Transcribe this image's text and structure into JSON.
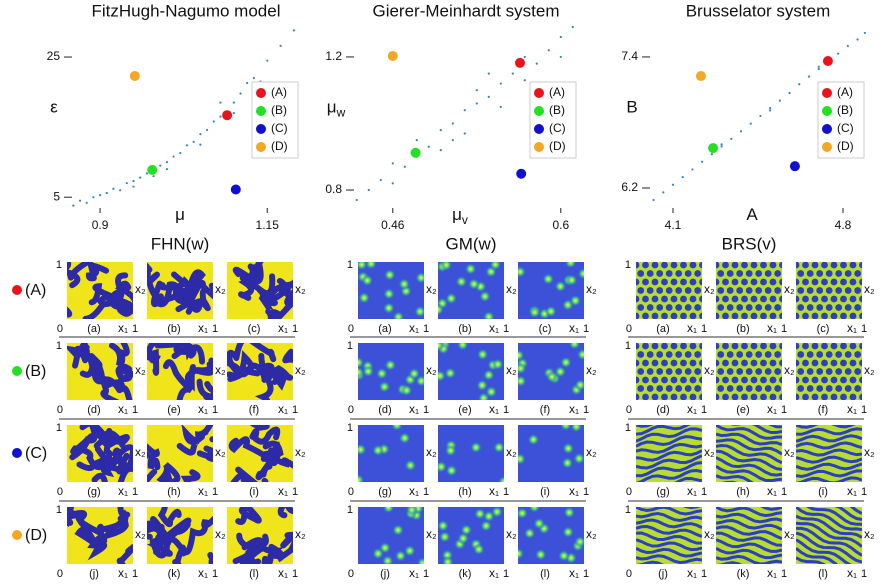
{
  "chart_data": [
    {
      "type": "scatter",
      "title": "FitzHugh-Nagumo model",
      "xlabel": [
        "μ",
        ""
      ],
      "ylabel": [
        "ε",
        ""
      ],
      "xlim": [
        0.855,
        1.202
      ],
      "ylim": [
        3.6,
        30
      ],
      "xticks": [
        0.9,
        1.15
      ],
      "yticks": [
        5,
        25
      ],
      "series": [
        {
          "color": "#1f77b4",
          "x": [
            0.86,
            0.87,
            0.88,
            0.89,
            0.9,
            0.91,
            0.92,
            0.93,
            0.94,
            0.95,
            0.96,
            0.97,
            0.98,
            0.99,
            1.0,
            1.01,
            1.02,
            1.03,
            1.04,
            1.05,
            1.06,
            1.07,
            1.08,
            1.1,
            1.11,
            1.12,
            1.13,
            1.15,
            1.17,
            1.19,
            0.95,
            1.0,
            1.05,
            1.1,
            1.08,
            1.14
          ],
          "values": [
            3.8,
            4.5,
            4.2,
            5.0,
            5.3,
            5.6,
            6.2,
            6.0,
            7.0,
            7.3,
            7.8,
            8.4,
            8.0,
            9.5,
            10.0,
            10.8,
            11.3,
            12.4,
            12.9,
            14.0,
            14.6,
            15.8,
            16.5,
            18.5,
            19.8,
            21.3,
            22.0,
            24.5,
            26.6,
            28.8,
            6.5,
            9.0,
            12.5,
            17.0,
            18.5,
            21.5
          ]
        },
        {
          "name": "(A)",
          "color": "#e8141a",
          "x": [
            1.09
          ],
          "values": [
            16.7
          ]
        },
        {
          "name": "(B)",
          "color": "#22e022",
          "x": [
            0.978
          ],
          "values": [
            8.9
          ]
        },
        {
          "name": "(C)",
          "color": "#1010d0",
          "x": [
            1.103
          ],
          "values": [
            6.1
          ]
        },
        {
          "name": "(D)",
          "color": "#f5a623",
          "x": [
            0.952
          ],
          "values": [
            22.3
          ]
        }
      ]
    },
    {
      "type": "scatter",
      "title": "Gierer-Meinhardt system",
      "xlabel": [
        "μ",
        "v"
      ],
      "ylabel": [
        "μ",
        "w"
      ],
      "xlim": [
        0.426,
        0.616
      ],
      "ylim": [
        0.749,
        1.305
      ],
      "xticks": [
        0.46,
        0.6
      ],
      "yticks": [
        0.8,
        1.2
      ],
      "series": [
        {
          "color": "#1f77b4",
          "x": [
            0.43,
            0.44,
            0.45,
            0.46,
            0.46,
            0.47,
            0.48,
            0.48,
            0.49,
            0.5,
            0.5,
            0.51,
            0.52,
            0.52,
            0.53,
            0.53,
            0.54,
            0.55,
            0.55,
            0.56,
            0.57,
            0.57,
            0.58,
            0.59,
            0.6,
            0.61,
            0.6,
            0.54,
            0.51
          ],
          "values": [
            0.77,
            0.8,
            0.83,
            0.82,
            0.88,
            0.87,
            0.9,
            0.95,
            0.93,
            0.98,
            0.92,
            1.0,
            1.04,
            0.97,
            1.06,
            1.1,
            1.08,
            1.12,
            1.05,
            1.15,
            1.13,
            1.2,
            1.18,
            1.22,
            1.26,
            1.29,
            1.2,
            1.15,
            0.95
          ]
        },
        {
          "name": "(A)",
          "color": "#e8141a",
          "x": [
            0.566
          ],
          "values": [
            1.182
          ]
        },
        {
          "name": "(B)",
          "color": "#22e022",
          "x": [
            0.479
          ],
          "values": [
            0.912
          ]
        },
        {
          "name": "(C)",
          "color": "#1010d0",
          "x": [
            0.567
          ],
          "values": [
            0.849
          ]
        },
        {
          "name": "(D)",
          "color": "#f5a623",
          "x": [
            0.46
          ],
          "values": [
            1.203
          ]
        }
      ]
    },
    {
      "type": "scatter",
      "title": "Brusselator system",
      "xlabel": [
        "A",
        ""
      ],
      "ylabel": [
        "B",
        ""
      ],
      "xlim": [
        3.997,
        4.903
      ],
      "ylim": [
        6.026,
        7.72
      ],
      "xticks": [
        4.1,
        4.8
      ],
      "yticks": [
        6.2,
        7.4
      ],
      "series": [
        {
          "color": "#1f77b4",
          "x": [
            4.02,
            4.06,
            4.1,
            4.14,
            4.18,
            4.22,
            4.26,
            4.3,
            4.34,
            4.38,
            4.42,
            4.46,
            4.5,
            4.54,
            4.58,
            4.62,
            4.66,
            4.7,
            4.74,
            4.78,
            4.82,
            4.86,
            4.89,
            4.3,
            4.5,
            4.7
          ],
          "values": [
            6.09,
            6.16,
            6.23,
            6.3,
            6.37,
            6.44,
            6.51,
            6.58,
            6.65,
            6.72,
            6.79,
            6.86,
            6.93,
            7.0,
            7.07,
            7.15,
            7.22,
            7.29,
            7.36,
            7.43,
            7.5,
            7.56,
            7.62,
            6.6,
            6.91,
            7.31
          ]
        },
        {
          "name": "(A)",
          "color": "#e8141a",
          "x": [
            4.738
          ],
          "values": [
            7.363
          ]
        },
        {
          "name": "(B)",
          "color": "#22e022",
          "x": [
            4.265
          ],
          "values": [
            6.565
          ]
        },
        {
          "name": "(C)",
          "color": "#1010d0",
          "x": [
            4.602
          ],
          "values": [
            6.4
          ]
        },
        {
          "name": "(D)",
          "color": "#f5a623",
          "x": [
            4.215
          ],
          "values": [
            7.225
          ]
        }
      ]
    }
  ],
  "pattern_grid": {
    "column_titles": [
      "FHN(w)",
      "GM(w)",
      "BRS(v)"
    ],
    "rows": [
      {
        "label": "(A)",
        "color": "#e8141a",
        "panels": [
          "(a)",
          "(b)",
          "(c)"
        ]
      },
      {
        "label": "(B)",
        "color": "#22e022",
        "panels": [
          "(d)",
          "(e)",
          "(f)"
        ]
      },
      {
        "label": "(C)",
        "color": "#1010d0",
        "panels": [
          "(g)",
          "(h)",
          "(i)"
        ]
      },
      {
        "label": "(D)",
        "color": "#f5a623",
        "panels": [
          "(j)",
          "(k)",
          "(l)"
        ]
      }
    ],
    "axis": {
      "x": "x₁",
      "y": "x₂",
      "min": 0,
      "max": 1
    }
  }
}
